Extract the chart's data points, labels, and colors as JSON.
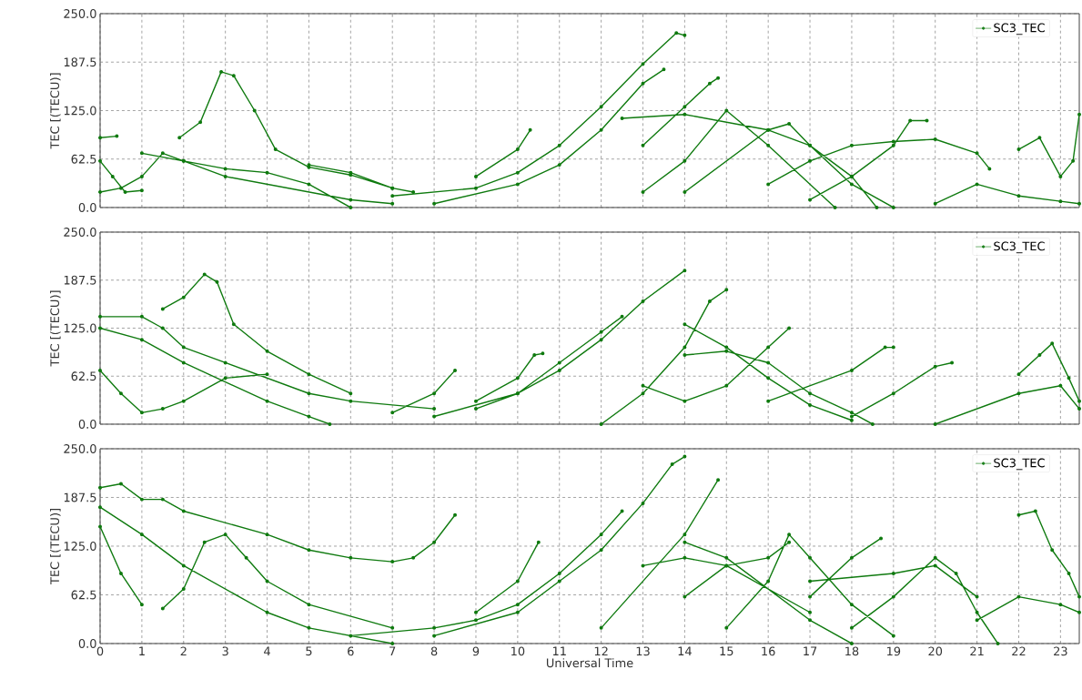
{
  "chart_data": [
    {
      "type": "line",
      "ylabel": "TEC [(TECU)]",
      "xlim": [
        0,
        23.45
      ],
      "ylim": [
        0,
        250
      ],
      "xticks": [
        0,
        1,
        2,
        3,
        4,
        5,
        6,
        7,
        8,
        9,
        10,
        11,
        12,
        13,
        14,
        15,
        16,
        17,
        18,
        19,
        20,
        21,
        22,
        23
      ],
      "yticks": [
        {
          "value": 0,
          "label": "0.0"
        },
        {
          "value": 62.5,
          "label": "62.5"
        },
        {
          "value": 125,
          "label": "125.0"
        },
        {
          "value": 187.5,
          "label": "187.5"
        },
        {
          "value": 250,
          "label": "250.0"
        }
      ],
      "grid": true,
      "legend": "top right",
      "marker": "circle",
      "line_style": "solid",
      "tick_labels": "y",
      "series": [
        {
          "name": "SC3_TEC",
          "color": "#0f7a0f",
          "x": [
            1.9,
            2.4,
            2.9,
            3.2,
            3.7,
            4.2,
            5,
            6,
            7,
            7.5,
            null,
            7,
            9,
            10,
            11,
            12,
            13,
            13.8,
            14,
            null,
            8,
            10,
            11,
            12,
            13,
            13.5,
            null,
            9,
            10,
            10.3,
            null,
            13,
            14,
            14.6,
            14.8,
            null,
            12.5,
            14,
            16,
            17,
            18,
            18.6,
            null,
            13,
            14,
            15,
            16,
            17.6,
            null,
            14,
            16,
            16.5,
            17,
            18,
            19,
            null,
            16,
            17,
            18,
            19,
            20,
            21,
            21.3,
            null,
            17,
            18,
            19,
            19.4,
            19.8,
            null,
            0,
            0.5,
            1,
            1.5,
            2,
            3,
            4,
            5,
            6,
            null,
            0,
            0.3,
            0.6,
            1,
            null,
            0,
            0.4,
            null,
            1,
            2,
            3,
            6,
            7,
            null,
            22,
            22.5,
            23,
            23.3,
            23.45,
            null,
            20,
            21,
            22,
            23,
            23.45,
            null,
            5,
            6,
            7
          ],
          "values": [
            90,
            110,
            175,
            170,
            125,
            75,
            52,
            42,
            25,
            20,
            null,
            15,
            25,
            45,
            80,
            130,
            185,
            225,
            222,
            null,
            5,
            30,
            55,
            100,
            160,
            178,
            null,
            40,
            75,
            100,
            null,
            80,
            130,
            160,
            167,
            null,
            115,
            120,
            100,
            80,
            40,
            0,
            null,
            20,
            60,
            125,
            80,
            0,
            null,
            20,
            100,
            108,
            80,
            30,
            0,
            null,
            30,
            60,
            80,
            85,
            88,
            70,
            50,
            null,
            10,
            40,
            80,
            112,
            112,
            null,
            20,
            25,
            40,
            70,
            60,
            50,
            45,
            30,
            0,
            null,
            60,
            40,
            20,
            22,
            null,
            90,
            92,
            null,
            70,
            60,
            40,
            10,
            5,
            null,
            75,
            90,
            40,
            60,
            120,
            null,
            5,
            30,
            15,
            8,
            5,
            null,
            55,
            45,
            25
          ]
        }
      ]
    },
    {
      "type": "line",
      "ylabel": "TEC [(TECU)]",
      "xlim": [
        0,
        23.45
      ],
      "ylim": [
        0,
        250
      ],
      "xticks": [
        0,
        1,
        2,
        3,
        4,
        5,
        6,
        7,
        8,
        9,
        10,
        11,
        12,
        13,
        14,
        15,
        16,
        17,
        18,
        19,
        20,
        21,
        22,
        23
      ],
      "yticks": [
        {
          "value": 0,
          "label": "0.0"
        },
        {
          "value": 62.5,
          "label": "62.5"
        },
        {
          "value": 125,
          "label": "125.0"
        },
        {
          "value": 187.5,
          "label": "187.5"
        },
        {
          "value": 250,
          "label": "250.0"
        }
      ],
      "grid": true,
      "legend": "top right",
      "marker": "circle",
      "line_style": "solid",
      "tick_labels": "y",
      "series": [
        {
          "name": "SC3_TEC",
          "color": "#0f7a0f",
          "x": [
            1.5,
            2,
            2.5,
            2.8,
            3.2,
            4,
            5,
            6,
            null,
            0,
            1,
            1.5,
            2,
            3,
            5,
            6,
            8,
            null,
            0,
            1,
            2,
            4,
            5,
            5.5,
            null,
            0,
            0.5,
            1,
            1.5,
            2,
            3,
            4,
            null,
            8,
            10,
            11,
            12,
            13,
            14,
            null,
            9,
            10,
            11,
            12,
            12.5,
            null,
            9,
            10,
            10.4,
            10.6,
            null,
            12,
            13,
            14,
            14.6,
            15,
            null,
            14,
            15,
            16,
            17,
            18,
            18.5,
            null,
            13,
            14,
            15,
            16,
            16.5,
            null,
            14,
            15,
            16,
            17,
            18,
            null,
            16,
            18,
            18.8,
            19,
            null,
            18,
            19,
            20,
            20.4,
            null,
            22,
            22.5,
            22.8,
            23.2,
            23.45,
            null,
            20,
            22,
            23,
            23.45,
            null,
            7,
            8,
            8.5
          ],
          "values": [
            150,
            165,
            195,
            185,
            130,
            95,
            65,
            40,
            null,
            140,
            140,
            125,
            100,
            80,
            40,
            30,
            20,
            null,
            125,
            110,
            80,
            30,
            10,
            0,
            null,
            70,
            40,
            15,
            20,
            30,
            60,
            65,
            null,
            10,
            40,
            70,
            110,
            160,
            200,
            null,
            20,
            40,
            80,
            120,
            140,
            null,
            30,
            60,
            90,
            92,
            null,
            0,
            40,
            100,
            160,
            175,
            null,
            90,
            95,
            80,
            40,
            15,
            0,
            null,
            50,
            30,
            50,
            100,
            125,
            null,
            130,
            100,
            60,
            25,
            5,
            null,
            30,
            70,
            100,
            100,
            null,
            10,
            40,
            75,
            80,
            null,
            65,
            90,
            105,
            60,
            30,
            null,
            0,
            40,
            50,
            20,
            null,
            15,
            40,
            70
          ]
        }
      ]
    },
    {
      "type": "line",
      "xlabel": "Universal Time",
      "ylabel": "TEC [(TECU)]",
      "xlim": [
        0,
        23.45
      ],
      "ylim": [
        0,
        250
      ],
      "xticks": [
        0,
        1,
        2,
        3,
        4,
        5,
        6,
        7,
        8,
        9,
        10,
        11,
        12,
        13,
        14,
        15,
        16,
        17,
        18,
        19,
        20,
        21,
        22,
        23
      ],
      "yticks": [
        {
          "value": 0,
          "label": "0.0"
        },
        {
          "value": 62.5,
          "label": "62.5"
        },
        {
          "value": 125,
          "label": "125.0"
        },
        {
          "value": 187.5,
          "label": "187.5"
        },
        {
          "value": 250,
          "label": "250.0"
        }
      ],
      "grid": true,
      "legend": "top right",
      "marker": "circle",
      "line_style": "solid",
      "series": [
        {
          "name": "SC3_TEC",
          "color": "#0f7a0f",
          "x": [
            0,
            0.5,
            1,
            1.5,
            2,
            4,
            5,
            6,
            7,
            7.5,
            8,
            8.5,
            null,
            0,
            1,
            2,
            4,
            5,
            7,
            null,
            1.5,
            2,
            2.5,
            3,
            3.5,
            4,
            5,
            7,
            null,
            0,
            0.5,
            1,
            null,
            6,
            8,
            9,
            10,
            11,
            12,
            12.5,
            null,
            8,
            10,
            11,
            12,
            13,
            13.7,
            14,
            null,
            9,
            10,
            10.5,
            null,
            12,
            14,
            14.8,
            null,
            13,
            14,
            15,
            17,
            null,
            14,
            15,
            17,
            18,
            null,
            14,
            15,
            16,
            16.5,
            null,
            15,
            16,
            16.5,
            17,
            18,
            19,
            null,
            17,
            18,
            18.7,
            null,
            17,
            19,
            20,
            21,
            null,
            18,
            19,
            20,
            20.5,
            21,
            21.5,
            null,
            22,
            22.4,
            22.8,
            23.2,
            23.45,
            null,
            21,
            22,
            23,
            23.45
          ],
          "values": [
            200,
            205,
            185,
            185,
            170,
            140,
            120,
            110,
            105,
            110,
            130,
            165,
            null,
            175,
            140,
            100,
            40,
            20,
            0,
            null,
            45,
            70,
            130,
            140,
            110,
            80,
            50,
            20,
            null,
            150,
            90,
            50,
            null,
            10,
            20,
            30,
            50,
            90,
            140,
            170,
            null,
            10,
            40,
            80,
            120,
            180,
            230,
            240,
            null,
            40,
            80,
            130,
            null,
            20,
            140,
            210,
            null,
            100,
            110,
            100,
            40,
            null,
            130,
            110,
            30,
            0,
            null,
            60,
            100,
            110,
            130,
            null,
            20,
            80,
            140,
            110,
            50,
            10,
            null,
            60,
            110,
            135,
            null,
            80,
            90,
            100,
            60,
            null,
            20,
            60,
            110,
            90,
            40,
            0,
            null,
            165,
            170,
            120,
            90,
            60,
            null,
            30,
            60,
            50,
            40
          ]
        }
      ]
    }
  ]
}
